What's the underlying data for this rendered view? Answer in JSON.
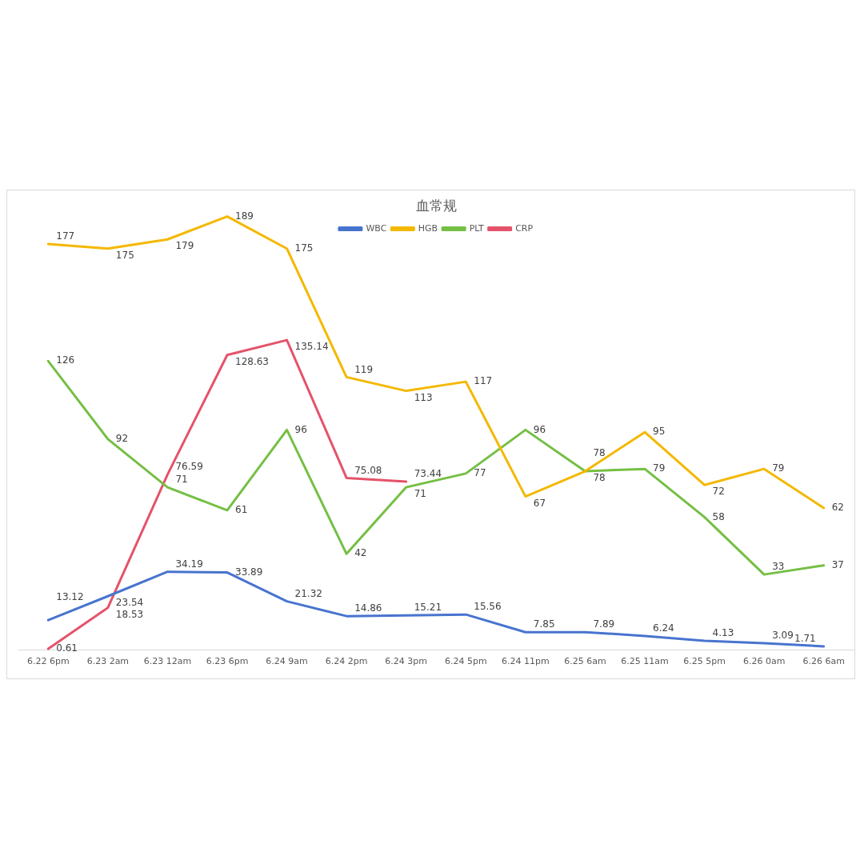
{
  "chart_data": {
    "type": "line",
    "title": "血常规",
    "categories": [
      "6.22 6pm",
      "6.23 2am",
      "6.23 12am",
      "6.23 6pm",
      "6.24 9am",
      "6.24 2pm",
      "6.24 3pm",
      "6.24 5pm",
      "6.24 11pm",
      "6.25 6am",
      "6.25 11am",
      "6.25 5pm",
      "6.26 0am",
      "6.26 6am"
    ],
    "series": [
      {
        "name": "WBC",
        "color": "#4874cf",
        "values": [
          13.12,
          23.54,
          34.19,
          33.89,
          21.32,
          14.86,
          15.21,
          15.56,
          7.85,
          7.89,
          6.24,
          4.13,
          3.09,
          1.71
        ]
      },
      {
        "name": "HGB",
        "color": "#f4b800",
        "values": [
          177,
          175,
          179,
          189,
          175,
          119,
          113,
          117,
          67,
          78,
          95,
          72,
          79,
          62
        ]
      },
      {
        "name": "PLT",
        "color": "#75bf44",
        "values": [
          126,
          92,
          71,
          61,
          96,
          42,
          71,
          77,
          96,
          78,
          79,
          58,
          33,
          37
        ]
      },
      {
        "name": "CRP",
        "color": "#e5536a",
        "values": [
          0.61,
          18.53,
          76.59,
          128.63,
          135.14,
          75.08,
          73.44,
          null,
          null,
          null,
          null,
          null,
          null,
          null
        ]
      }
    ],
    "ylim": [
      0,
      200
    ],
    "tick_labels": "x",
    "legend": "top",
    "data_labels": true,
    "marker": "none"
  }
}
